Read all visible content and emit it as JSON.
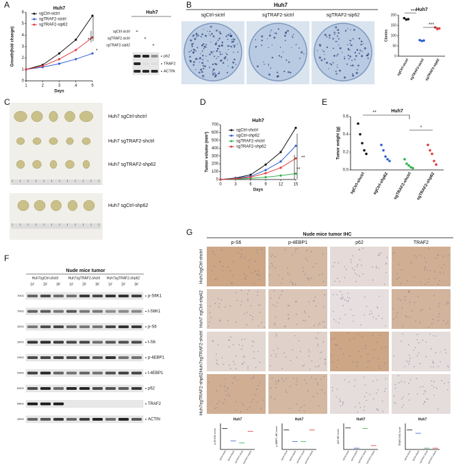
{
  "panels": [
    {
      "letter": "A",
      "chart": {
        "type": "line",
        "title": "Huh7",
        "xlabel": "Days",
        "ylabel": "Growth(fold change)",
        "x": [
          1,
          2,
          3,
          4,
          5
        ],
        "xlim": [
          1,
          5
        ],
        "xticks": [
          1,
          2,
          3,
          4,
          5
        ],
        "ylim": [
          0,
          6
        ],
        "yticks": [
          0,
          1,
          2,
          3,
          4,
          5,
          6
        ],
        "series": [
          {
            "name": "sgCtrl-sictrl",
            "color": "#111111",
            "values": [
              1,
              1.4,
              2.4,
              3.6,
              5.7
            ]
          },
          {
            "name": "sgTRAF2-sictrl",
            "color": "#2f5fd0",
            "values": [
              1,
              1.2,
              1.5,
              1.9,
              2.4
            ]
          },
          {
            "name": "sgTRAF2-sip62",
            "color": "#e23b3b",
            "values": [
              1,
              1.3,
              1.9,
              2.7,
              3.8
            ]
          }
        ],
        "annotations": [
          "*",
          "**"
        ]
      },
      "blot": {
        "title": "Huh7",
        "conditions": [
          "sgCtrl-sictrl",
          "sgTRAF2-sictrl",
          "sgTRAF2-sip62"
        ],
        "mark": "+",
        "bands": [
          "p62",
          "TRAF2",
          "ACTIN"
        ]
      }
    },
    {
      "letter": "B",
      "header": "Huh7",
      "dishes": [
        "sgCtrl-sictrl",
        "sgTRAF2-sictrl",
        "sgTRAF2-sip62"
      ],
      "chart": {
        "type": "scatter",
        "title": "Huh7",
        "ylabel": "Clonies",
        "ylim": [
          0,
          200
        ],
        "yticks": [
          0,
          50,
          100,
          150,
          200
        ],
        "series": [
          {
            "name": "sgCtrl-sictrl",
            "color": "#111111",
            "values": [
              185,
              178,
              180
            ]
          },
          {
            "name": "sgTRAF2-sictrl",
            "color": "#2f5fd0",
            "values": [
              78,
              74,
              76
            ]
          },
          {
            "name": "sgTRAF2-sip62",
            "color": "#e23b3b",
            "values": [
              140,
              132,
              135
            ]
          }
        ],
        "annotations": [
          "***",
          "***"
        ]
      }
    },
    {
      "letter": "C",
      "labels": [
        "Huh7 sgCtrl-shctrl",
        "Huh7 sgTRAF2-shctrl",
        "Huh7 sgTRAF2-shp62",
        "Huh7 sgCtrl-shp62"
      ]
    },
    {
      "letter": "D",
      "chart": {
        "type": "line",
        "title": "Huh7",
        "xlabel": "Days",
        "ylabel": "Tumor volume (mm³)",
        "x": [
          0,
          3,
          6,
          9,
          12,
          15
        ],
        "xlim": [
          0,
          15
        ],
        "xticks": [
          0,
          3,
          6,
          9,
          12,
          15
        ],
        "ylim": [
          0,
          700
        ],
        "yticks": [
          0,
          100,
          200,
          300,
          400,
          500,
          600,
          700
        ],
        "series": [
          {
            "name": "sgCtrl-shctrl",
            "color": "#111111",
            "values": [
              0,
              20,
              60,
              190,
              350,
              660
            ]
          },
          {
            "name": "sgCtrl-shp62",
            "color": "#2f5fd0",
            "values": [
              0,
              15,
              40,
              120,
              230,
              430
            ]
          },
          {
            "name": "sgTRAF2-shctrl",
            "color": "#2fb34a",
            "values": [
              0,
              5,
              15,
              30,
              50,
              75
            ]
          },
          {
            "name": "sgTRAF2-shp62",
            "color": "#e23b3b",
            "values": [
              0,
              10,
              30,
              80,
              150,
              270
            ]
          }
        ],
        "annotations": [
          "**",
          "**"
        ]
      }
    },
    {
      "letter": "E",
      "chart": {
        "type": "scatter",
        "title": "Huh7",
        "ylabel": "Tumor weight (g)",
        "ylim": [
          0,
          0.6
        ],
        "yticks": [
          {
            "value": 0,
            "label": "0.0"
          },
          {
            "value": 0.2,
            "label": "0.2"
          },
          {
            "value": 0.4,
            "label": "0.4"
          },
          {
            "value": 0.6,
            "label": "0.6"
          }
        ],
        "series": [
          {
            "name": "sgCtrl-shctrl",
            "color": "#111111",
            "values": [
              0.52,
              0.4,
              0.3,
              0.22,
              0.18
            ]
          },
          {
            "name": "sgCtrl-shp62",
            "color": "#2f5fd0",
            "values": [
              0.28,
              0.22,
              0.15,
              0.12,
              0.1
            ]
          },
          {
            "name": "sgTRAF2-shctrl",
            "color": "#2fb34a",
            "values": [
              0.12,
              0.07,
              0.05,
              0.03,
              0.02
            ]
          },
          {
            "name": "sgTRAF2-shp62",
            "color": "#e23b3b",
            "values": [
              0.28,
              0.22,
              0.18,
              0.1,
              0.06
            ]
          }
        ],
        "annotations": [
          "**",
          "*"
        ]
      }
    },
    {
      "letter": "F",
      "title": "Nude mice tumor",
      "groups": [
        "Huh7sgCtrl-shctrl",
        "Huh7sgTRAF2-shctrl",
        "Huh7sgTRAF2-shp62"
      ],
      "lanes": [
        "1#",
        "2#",
        "3#"
      ],
      "bands": [
        "p-S6K1",
        "t-S6K1",
        "p-S6",
        "t-S6",
        "p-4EBP1",
        "t-4EBP1",
        "p62",
        "TRAF2",
        "ACTIN"
      ],
      "markers": [
        "70KD",
        "70KD",
        "32KD",
        "32KD",
        "20KD",
        "20KD",
        "62KD",
        "55KD",
        "42KD"
      ]
    },
    {
      "letter": "G",
      "title": "Nude mice tumor IHC",
      "columns": [
        "p-S6",
        "p-4EBP1",
        "p62",
        "TRAF2"
      ],
      "rows": [
        "Huh7sgCtrl-shctrl",
        "Huh7 sgCtrl-shp62",
        "Huh7sgTRAF2-shctrl",
        "Huh7sgTRAF2-shp62"
      ],
      "plots": [
        {
          "type": "scatter",
          "title": "Huh7",
          "ylabel": "p-S6 IHC score",
          "ylim": [
            0,
            4
          ],
          "categories": [
            "sgCtrl-shctrl",
            "sgCtrl-shp62",
            "sgTRAF2-shctrl",
            "sgTRAF2-shp62"
          ],
          "values": [
            3.2,
            1.3,
            1.0,
            2.8
          ]
        },
        {
          "type": "scatter",
          "title": "Huh7",
          "ylabel": "p-4EBP1 IHC score",
          "ylim": [
            0,
            4
          ],
          "categories": [
            "sgCtrl-shctrl",
            "sgCtrl-shp62",
            "sgTRAF2-shctrl",
            "sgTRAF2-shp62"
          ],
          "values": [
            3.0,
            1.2,
            1.2,
            3.0
          ]
        },
        {
          "type": "scatter",
          "title": "HuH7",
          "ylabel": "p62 IHC score",
          "ylim": [
            0,
            4
          ],
          "categories": [
            "sgCtrl-shctrl",
            "sgCtrl-shp62",
            "sgTRAF2-shctrl",
            "sgTRAF2-shp62"
          ],
          "values": [
            3.3,
            0.2,
            3.2,
            0.6
          ]
        },
        {
          "type": "scatter",
          "title": "Huh7",
          "ylabel": "TRAF2 IHC score",
          "ylim": [
            0,
            4
          ],
          "categories": [
            "sgCtrl-shctrl",
            "sgCtrl-shp62",
            "sgTRAF2-shctrl",
            "sgTRAF2-shp62"
          ],
          "values": [
            3.0,
            2.5,
            0.2,
            0.2
          ]
        }
      ]
    }
  ]
}
